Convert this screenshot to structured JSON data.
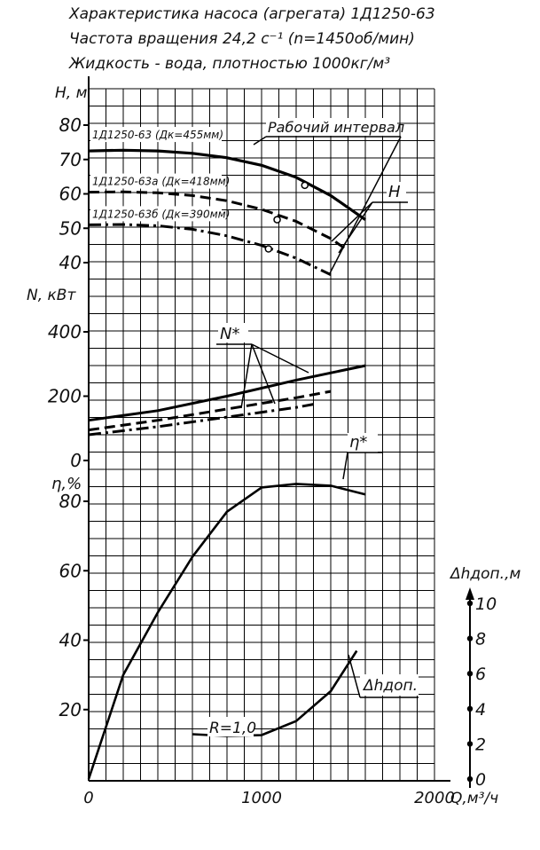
{
  "header": {
    "line1": "Характеристика насоса (агрегата) 1Д1250-63",
    "line2": "Частота вращения 24,2 с⁻¹ (n=1450об/мин)",
    "line3": "Жидкость - вода, плотностью 1000кг/м³"
  },
  "chart_data": {
    "type": "line",
    "x_axis": {
      "label": "Q,м³/ч",
      "range": [
        0,
        2000
      ],
      "ticks": [
        "0",
        "1000",
        "2000"
      ]
    },
    "panels": {
      "head": {
        "ylabel": "Н, м",
        "ylim": [
          35,
          85
        ],
        "ticks": [
          "40",
          "50",
          "60",
          "70",
          "80"
        ],
        "series": [
          {
            "name": "1Д1250-63 (Дк=455мм)",
            "style": "solid",
            "x": [
              0,
              200,
              400,
              600,
              800,
              1000,
              1200,
              1400,
              1600
            ],
            "y": [
              72.5,
              72.7,
              72.5,
              71.8,
              70.5,
              68.3,
              64.8,
              59.5,
              52.5
            ]
          },
          {
            "name": "1Д1250-63а (Дк=418мм)",
            "style": "dashed",
            "x": [
              0,
              200,
              400,
              600,
              800,
              1000,
              1200,
              1400,
              1500
            ],
            "y": [
              60.5,
              60.6,
              60.3,
              59.5,
              58,
              55.5,
              52,
              47,
              43.5
            ]
          },
          {
            "name": "1Д1250-63б (Дк=390мм)",
            "style": "dashdot",
            "x": [
              0,
              200,
              400,
              600,
              800,
              1000,
              1200,
              1400
            ],
            "y": [
              51,
              51.1,
              50.7,
              49.7,
              47.8,
              45,
              41.3,
              36.5
            ]
          }
        ],
        "markers": [
          {
            "x": 1250,
            "y": 62.5
          },
          {
            "x": 1090,
            "y": 52.5
          },
          {
            "x": 1040,
            "y": 44
          }
        ],
        "annotations": [
          "Рабочий интервал",
          "Н"
        ]
      },
      "power": {
        "ylabel": "N, кВт",
        "ylim": [
          0,
          420
        ],
        "ticks": [
          "0",
          "200",
          "400"
        ],
        "series": [
          {
            "name": "1Д1250-63",
            "style": "solid",
            "x": [
              0,
              400,
              800,
              1200,
              1600
            ],
            "y": [
              125,
              155,
              200,
              250,
              295
            ]
          },
          {
            "name": "1Д1250-63а",
            "style": "dashed",
            "x": [
              0,
              400,
              800,
              1200,
              1400
            ],
            "y": [
              95,
              125,
              160,
              195,
              215
            ]
          },
          {
            "name": "1Д1250-63б",
            "style": "dashdot",
            "x": [
              0,
              400,
              800,
              1200,
              1300
            ],
            "y": [
              80,
              105,
              135,
              165,
              175
            ]
          }
        ],
        "annotations": [
          "N*"
        ]
      },
      "efficiency": {
        "ylabel": "η,%",
        "ylim": [
          0,
          85
        ],
        "ticks": [
          "20",
          "40",
          "60",
          "80"
        ],
        "series": [
          {
            "name": "η",
            "style": "solid",
            "x": [
              0,
              200,
              400,
              600,
              800,
              1000,
              1200,
              1400,
              1600
            ],
            "y": [
              0,
              30,
              48,
              64,
              77,
              84,
              85,
              84.5,
              82
            ]
          }
        ],
        "annotations": [
          "η*",
          "R=1,0"
        ]
      },
      "npsh": {
        "ylabel": "Δhдоп.,м",
        "ylim": [
          0,
          10
        ],
        "ticks": [
          "0",
          "2",
          "4",
          "6",
          "8",
          "10"
        ],
        "series": [
          {
            "name": "Δhдоп.",
            "style": "solid",
            "x": [
              600,
              800,
              1000,
              1200,
              1400,
              1550
            ],
            "y": [
              2.55,
              2.45,
              2.5,
              3.3,
              5.0,
              7.3
            ]
          }
        ],
        "annotations": [
          "Δhдоп."
        ]
      }
    }
  }
}
